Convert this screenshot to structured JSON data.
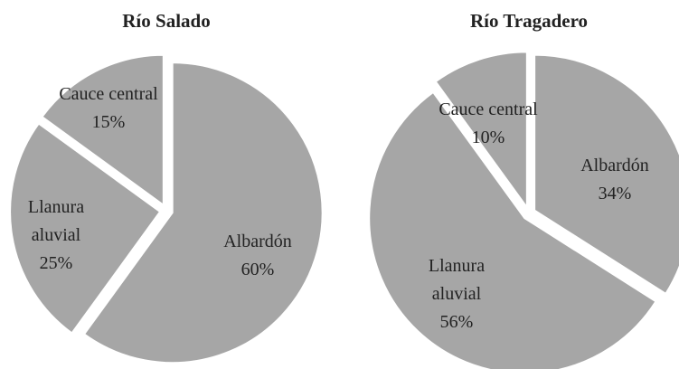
{
  "chart_data": [
    {
      "type": "pie",
      "title": "Río Salado",
      "categories": [
        "Albardón",
        "Llanura aluvial",
        "Cauce central"
      ],
      "values": [
        60,
        25,
        15
      ],
      "value_labels": [
        "60%",
        "25%",
        "15%"
      ],
      "color": "#a6a6a6"
    },
    {
      "type": "pie",
      "title": "Río Tragadero",
      "categories": [
        "Albardón",
        "Llanura aluvial",
        "Cauce central"
      ],
      "values": [
        34,
        56,
        10
      ],
      "value_labels": [
        "34%",
        "56%",
        "10%"
      ],
      "color": "#a6a6a6"
    }
  ]
}
